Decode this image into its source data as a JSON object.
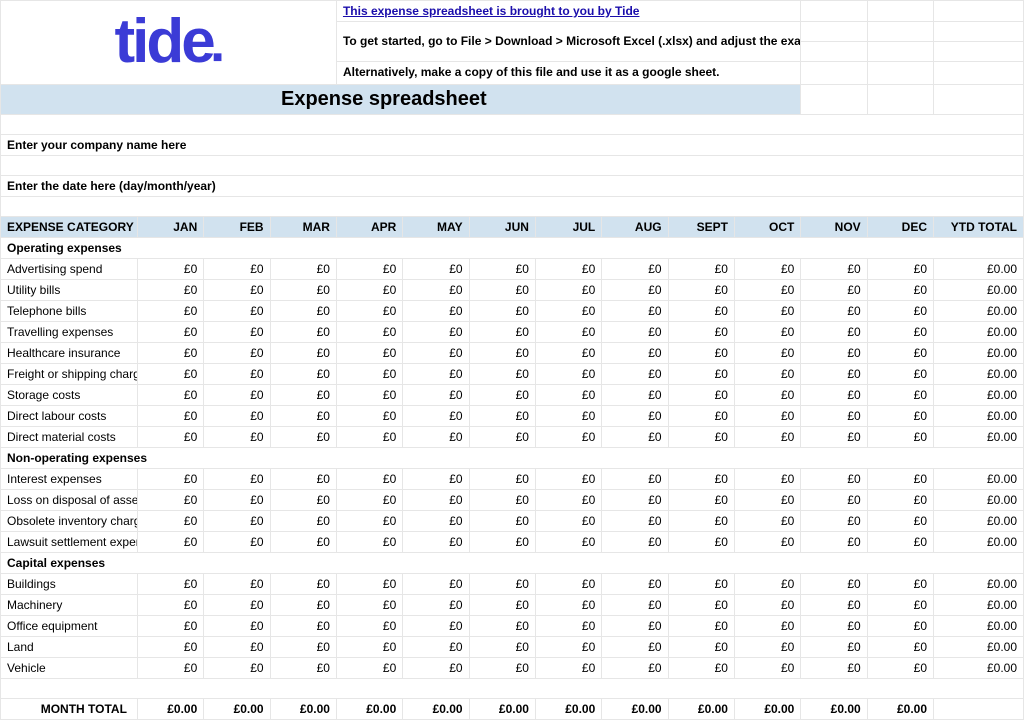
{
  "logo": {
    "text": "tide",
    "color": "#3b3bd6"
  },
  "promo_link": "This expense spreadsheet is brought to you by Tide",
  "instructions_line1": "To get started, go to File > Download > Microsoft Excel (.xlsx) and adjust the examples to fit your business.",
  "instructions_line2": "Alternatively, make a copy of this file and use it as a google sheet.",
  "title": "Expense spreadsheet",
  "company_prompt": "Enter your company name here",
  "date_prompt": "Enter the date here (day/month/year)",
  "columns": {
    "category": "EXPENSE CATEGORY",
    "months": [
      "JAN",
      "FEB",
      "MAR",
      "APR",
      "MAY",
      "JUN",
      "JUL",
      "AUG",
      "SEPT",
      "OCT",
      "NOV",
      "DEC"
    ],
    "ytd": "YTD TOTAL"
  },
  "sections": [
    {
      "name": "Operating expenses",
      "rows": [
        "Advertising spend",
        "Utility bills",
        "Telephone bills",
        "Travelling expenses",
        "Healthcare insurance",
        "Freight or shipping charges",
        "Storage costs",
        "Direct labour costs",
        "Direct material costs"
      ]
    },
    {
      "name": "Non-operating expenses",
      "rows": [
        "Interest expenses",
        "Loss on disposal of assets",
        "Obsolete inventory charges",
        "Lawsuit settlement expenses"
      ]
    },
    {
      "name": "Capital expenses",
      "rows": [
        "Buildings",
        "Machinery",
        "Office equipment",
        "Land",
        "Vehicle"
      ]
    }
  ],
  "cell_value": "£0",
  "ytd_value": "£0.00",
  "month_total_label": "MONTH TOTAL",
  "month_total_value": "£0.00",
  "colors": {
    "header_bg": "#d1e2ef",
    "grid": "#e6e6e6",
    "link": "#1a0dab"
  }
}
